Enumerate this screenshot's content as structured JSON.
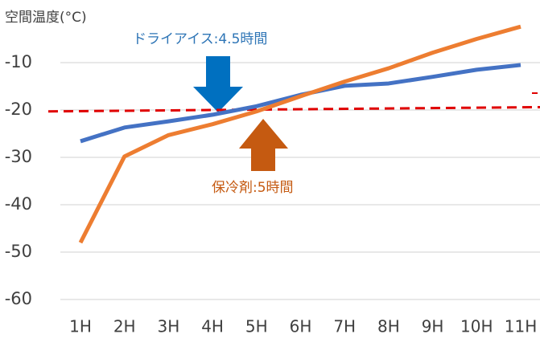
{
  "chart_data": {
    "type": "line",
    "y_axis_label": "空間温度(°C)",
    "categories": [
      "1H",
      "2H",
      "3H",
      "4H",
      "5H",
      "6H",
      "7H",
      "8H",
      "9H",
      "10H",
      "11H"
    ],
    "series": [
      {
        "color": "#4472c4",
        "values": [
          -26.6,
          -23.7,
          -22.4,
          -21,
          -19.2,
          -16.8,
          -14.9,
          -14.4,
          -13,
          -11.5,
          -10.5
        ]
      },
      {
        "color": "#ed7d31",
        "values": [
          -48,
          -29.8,
          -25.3,
          -23,
          -20.3,
          -17.1,
          -14,
          -11.2,
          -7.9,
          -5,
          -2.4
        ]
      }
    ],
    "threshold": {
      "color": "#e00000",
      "start": -20.3,
      "end": -19.4
    },
    "ylim": [
      -60,
      0
    ],
    "yticks": [
      -10,
      -20,
      -30,
      -40,
      -50,
      -60
    ],
    "grid": true,
    "annotations": [
      {
        "text": "ドライアイス:4.5時間",
        "color": "#2e75b6"
      },
      {
        "text": "保冷剤:5時間",
        "color": "#c55a11"
      }
    ]
  }
}
